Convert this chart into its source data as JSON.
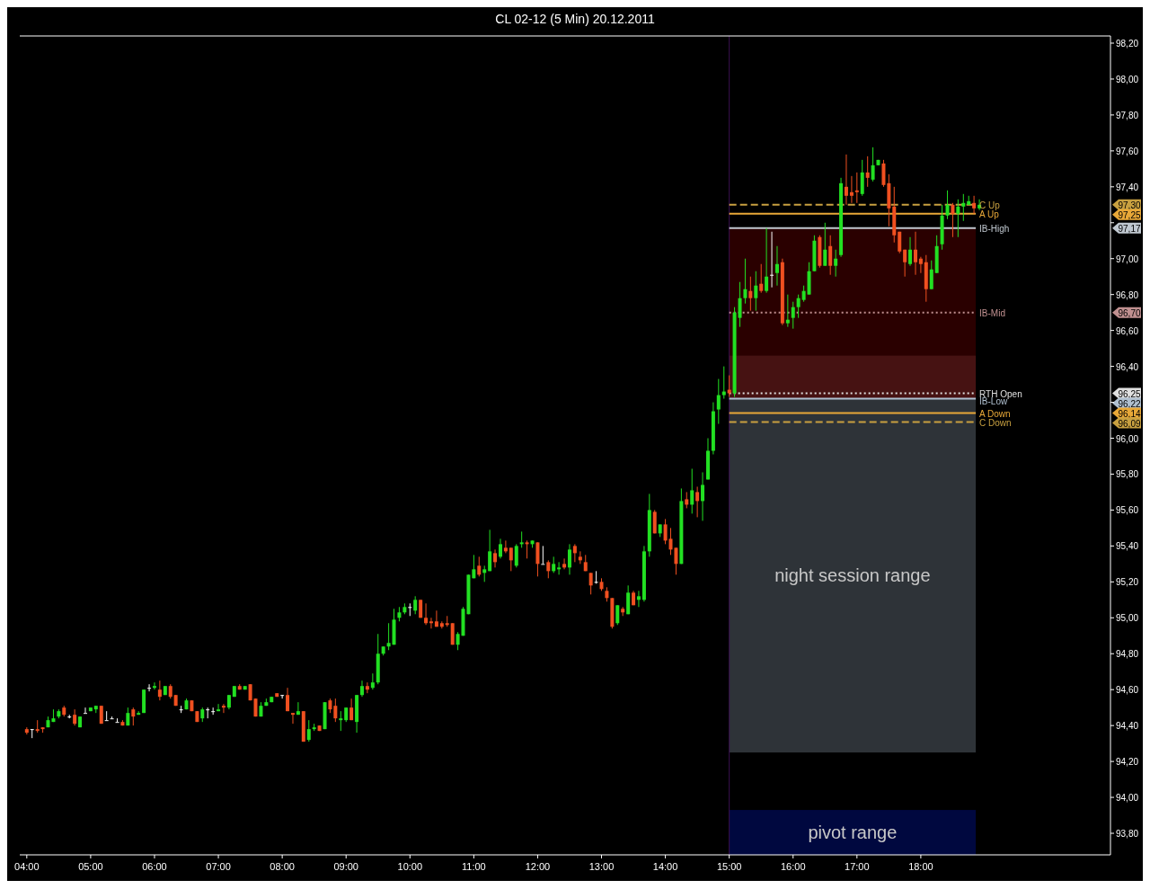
{
  "chart_data": {
    "type": "candlestick",
    "title": "CL 02-12 (5 Min)  20.12.2011",
    "x": [
      4,
      4.083,
      4.167,
      4.25,
      4.333,
      4.417,
      4.5,
      4.583,
      4.667,
      4.75,
      4.833,
      4.917,
      5,
      5.083,
      5.167,
      5.25,
      5.333,
      5.417,
      5.5,
      5.583,
      5.667,
      5.75,
      5.833,
      5.917,
      6,
      6.083,
      6.167,
      6.25,
      6.333,
      6.417,
      6.5,
      6.583,
      6.667,
      6.75,
      6.833,
      6.917,
      7,
      7.083,
      7.167,
      7.25,
      7.333,
      7.417,
      7.5,
      7.583,
      7.667,
      7.75,
      7.833,
      7.917,
      8,
      8.083,
      8.167,
      8.25,
      8.333,
      8.417,
      8.5,
      8.583,
      8.667,
      8.75,
      8.833,
      8.917,
      9,
      9.083,
      9.167,
      9.25,
      9.333,
      9.417,
      9.5,
      9.583,
      9.667,
      9.75,
      9.833,
      9.917,
      10,
      10.083,
      10.167,
      10.25,
      10.333,
      10.417,
      10.5,
      10.583,
      10.667,
      10.75,
      10.833,
      10.917,
      11,
      11.083,
      11.167,
      11.25,
      11.333,
      11.417,
      11.5,
      11.583,
      11.667,
      11.75,
      11.833,
      11.917,
      12,
      12.083,
      12.167,
      12.25,
      12.333,
      12.417,
      12.5,
      12.583,
      12.667,
      12.75,
      12.833,
      12.917,
      13,
      13.083,
      13.167,
      13.25,
      13.333,
      13.417,
      13.5,
      13.583,
      13.667,
      13.75,
      13.833,
      13.917,
      14,
      14.083,
      14.167,
      14.25,
      14.333,
      14.417,
      14.5,
      14.583,
      14.667,
      14.75,
      14.833,
      14.917,
      15,
      15.083,
      15.167,
      15.25,
      15.333,
      15.417,
      15.5,
      15.583,
      15.667,
      15.75,
      15.833,
      15.917,
      16,
      16.083,
      16.167,
      16.25,
      16.333,
      16.417,
      16.5,
      16.583,
      16.667,
      16.75,
      16.833,
      16.917,
      17,
      17.083,
      17.167,
      17.25,
      17.333,
      17.417,
      17.5,
      17.583,
      17.667,
      17.75,
      17.833,
      17.917,
      18,
      18.083,
      18.167,
      18.25,
      18.333,
      18.417,
      18.5,
      18.583,
      18.667,
      18.75,
      18.833,
      18.917
    ],
    "ohlc": [
      [
        94.38,
        94.39,
        94.35,
        94.36
      ],
      [
        94.38,
        94.38,
        94.33,
        94.38
      ],
      [
        94.38,
        94.43,
        94.36,
        94.37
      ],
      [
        94.39,
        94.39,
        94.36,
        94.38
      ],
      [
        94.39,
        94.45,
        94.39,
        94.43
      ],
      [
        94.42,
        94.49,
        94.42,
        94.44
      ],
      [
        94.45,
        94.49,
        94.44,
        94.48
      ],
      [
        94.5,
        94.51,
        94.45,
        94.46
      ],
      [
        94.45,
        94.46,
        94.44,
        94.45
      ],
      [
        94.46,
        94.49,
        94.4,
        94.41
      ],
      [
        94.39,
        94.45,
        94.39,
        94.45
      ],
      [
        94.47,
        94.5,
        94.47,
        94.47
      ],
      [
        94.48,
        94.5,
        94.48,
        94.5
      ],
      [
        94.49,
        94.51,
        94.47,
        94.51
      ],
      [
        94.51,
        94.51,
        94.41,
        94.41
      ],
      [
        94.43,
        94.48,
        94.43,
        94.43
      ],
      [
        94.44,
        94.45,
        94.44,
        94.44
      ],
      [
        94.42,
        94.44,
        94.42,
        94.42
      ],
      [
        94.42,
        94.43,
        94.4,
        94.4
      ],
      [
        94.4,
        94.5,
        94.4,
        94.47
      ],
      [
        94.49,
        94.5,
        94.4,
        94.45
      ],
      [
        94.46,
        94.48,
        94.46,
        94.47
      ],
      [
        94.47,
        94.6,
        94.47,
        94.6
      ],
      [
        94.61,
        94.63,
        94.59,
        94.61
      ],
      [
        94.61,
        94.64,
        94.6,
        94.62
      ],
      [
        94.6,
        94.65,
        94.54,
        94.56
      ],
      [
        94.57,
        94.62,
        94.57,
        94.62
      ],
      [
        94.62,
        94.63,
        94.55,
        94.56
      ],
      [
        94.57,
        94.57,
        94.51,
        94.51
      ],
      [
        94.49,
        94.51,
        94.47,
        94.49
      ],
      [
        94.49,
        94.55,
        94.49,
        94.54
      ],
      [
        94.54,
        94.54,
        94.48,
        94.48
      ],
      [
        94.48,
        94.48,
        94.42,
        94.42
      ],
      [
        94.44,
        94.5,
        94.42,
        94.49
      ],
      [
        94.49,
        94.5,
        94.44,
        94.49
      ],
      [
        94.48,
        94.5,
        94.46,
        94.48
      ],
      [
        94.48,
        94.52,
        94.48,
        94.49
      ],
      [
        94.51,
        94.52,
        94.47,
        94.5
      ],
      [
        94.5,
        94.57,
        94.49,
        94.57
      ],
      [
        94.56,
        94.62,
        94.56,
        94.62
      ],
      [
        94.62,
        94.63,
        94.6,
        94.6
      ],
      [
        94.6,
        94.62,
        94.6,
        94.62
      ],
      [
        94.63,
        94.63,
        94.54,
        94.54
      ],
      [
        94.55,
        94.55,
        94.45,
        94.45
      ],
      [
        94.45,
        94.53,
        94.45,
        94.51
      ],
      [
        94.51,
        94.55,
        94.51,
        94.53
      ],
      [
        94.53,
        94.56,
        94.53,
        94.56
      ],
      [
        94.58,
        94.58,
        94.56,
        94.56
      ],
      [
        94.57,
        94.57,
        94.55,
        94.57
      ],
      [
        94.57,
        94.61,
        94.48,
        94.48
      ],
      [
        94.47,
        94.47,
        94.41,
        94.46
      ],
      [
        94.46,
        94.53,
        94.46,
        94.48
      ],
      [
        94.48,
        94.48,
        94.31,
        94.31
      ],
      [
        94.32,
        94.43,
        94.31,
        94.38
      ],
      [
        94.38,
        94.41,
        94.37,
        94.39
      ],
      [
        94.4,
        94.4,
        94.37,
        94.37
      ],
      [
        94.38,
        94.53,
        94.38,
        94.53
      ],
      [
        94.54,
        94.55,
        94.47,
        94.49
      ],
      [
        94.51,
        94.55,
        94.42,
        94.44
      ],
      [
        94.43,
        94.48,
        94.37,
        94.44
      ],
      [
        94.43,
        94.5,
        94.42,
        94.5
      ],
      [
        94.5,
        94.55,
        94.43,
        94.43
      ],
      [
        94.42,
        94.57,
        94.36,
        94.57
      ],
      [
        94.57,
        94.65,
        94.56,
        94.62
      ],
      [
        94.62,
        94.64,
        94.58,
        94.6
      ],
      [
        94.61,
        94.69,
        94.6,
        94.64
      ],
      [
        94.64,
        94.91,
        94.63,
        94.8
      ],
      [
        94.8,
        94.84,
        94.79,
        94.84
      ],
      [
        94.84,
        94.97,
        94.82,
        94.86
      ],
      [
        94.85,
        95.05,
        94.85,
        94.99
      ],
      [
        95,
        95.06,
        94.98,
        95.03
      ],
      [
        95.03,
        95.08,
        95.02,
        95.06
      ],
      [
        95.06,
        95.08,
        95.01,
        95.06
      ],
      [
        95.04,
        95.12,
        95.02,
        95.1
      ],
      [
        95.1,
        95.1,
        95,
        95
      ],
      [
        95,
        95.08,
        94.96,
        94.97
      ],
      [
        94.98,
        95,
        94.94,
        94.97
      ],
      [
        94.98,
        95.04,
        94.95,
        94.95
      ],
      [
        94.97,
        94.98,
        94.94,
        94.95
      ],
      [
        94.97,
        95.01,
        94.95,
        94.96
      ],
      [
        94.97,
        94.97,
        94.85,
        94.85
      ],
      [
        94.85,
        94.92,
        94.82,
        94.91
      ],
      [
        94.9,
        95.06,
        94.9,
        95.05
      ],
      [
        95.02,
        95.24,
        95.02,
        95.24
      ],
      [
        95.22,
        95.35,
        95.22,
        95.27
      ],
      [
        95.29,
        95.34,
        95.23,
        95.24
      ],
      [
        95.25,
        95.29,
        95.2,
        95.27
      ],
      [
        95.26,
        95.49,
        95.26,
        95.37
      ],
      [
        95.36,
        95.38,
        95.28,
        95.31
      ],
      [
        95.34,
        95.44,
        95.33,
        95.41
      ],
      [
        95.39,
        95.43,
        95.36,
        95.37
      ],
      [
        95.39,
        95.39,
        95.26,
        95.32
      ],
      [
        95.29,
        95.41,
        95.28,
        95.4
      ],
      [
        95.41,
        95.48,
        95.39,
        95.42
      ],
      [
        95.42,
        95.43,
        95.33,
        95.41
      ],
      [
        95.41,
        95.43,
        95.39,
        95.43
      ],
      [
        95.42,
        95.42,
        95.23,
        95.3
      ],
      [
        95.3,
        95.4,
        95.3,
        95.3
      ],
      [
        95.31,
        95.32,
        95.22,
        95.26
      ],
      [
        95.26,
        95.34,
        95.25,
        95.3
      ],
      [
        95.27,
        95.31,
        95.24,
        95.28
      ],
      [
        95.3,
        95.33,
        95.27,
        95.28
      ],
      [
        95.28,
        95.41,
        95.24,
        95.38
      ],
      [
        95.4,
        95.41,
        95.31,
        95.36
      ],
      [
        95.34,
        95.37,
        95.3,
        95.32
      ],
      [
        95.31,
        95.35,
        95.26,
        95.26
      ],
      [
        95.25,
        95.25,
        95.13,
        95.18
      ],
      [
        95.2,
        95.26,
        95.19,
        95.2
      ],
      [
        95.2,
        95.22,
        95.15,
        95.16
      ],
      [
        95.15,
        95.17,
        95.09,
        95.11
      ],
      [
        95.11,
        95.11,
        94.94,
        94.95
      ],
      [
        94.97,
        95.07,
        94.96,
        95.07
      ],
      [
        95.05,
        95.06,
        95.01,
        95.03
      ],
      [
        95.02,
        95.18,
        95.02,
        95.14
      ],
      [
        95.14,
        95.15,
        95.07,
        95.07
      ],
      [
        95.1,
        95.15,
        95.06,
        95.12
      ],
      [
        95.1,
        95.4,
        95.09,
        95.37
      ],
      [
        95.37,
        95.69,
        95.34,
        95.6
      ],
      [
        95.59,
        95.6,
        95.47,
        95.47
      ],
      [
        95.47,
        95.52,
        95.45,
        95.52
      ],
      [
        95.52,
        95.55,
        95.41,
        95.43
      ],
      [
        95.44,
        95.5,
        95.35,
        95.38
      ],
      [
        95.39,
        95.39,
        95.24,
        95.3
      ],
      [
        95.3,
        95.72,
        95.3,
        95.65
      ],
      [
        95.66,
        95.7,
        95.61,
        95.63
      ],
      [
        95.63,
        95.83,
        95.58,
        95.71
      ],
      [
        95.7,
        95.73,
        95.56,
        95.65
      ],
      [
        95.65,
        95.81,
        95.54,
        95.74
      ],
      [
        95.77,
        96,
        95.77,
        95.93
      ],
      [
        95.93,
        96.2,
        95.91,
        96.15
      ],
      [
        96.16,
        96.33,
        96.08,
        96.24
      ],
      [
        96.24,
        96.4,
        96.22,
        96.26
      ],
      [
        96.27,
        96.35,
        96.23,
        96.25
      ],
      [
        96.25,
        96.73,
        96.23,
        96.7
      ],
      [
        96.67,
        96.87,
        96.62,
        96.78
      ],
      [
        96.78,
        97,
        96.75,
        96.83
      ],
      [
        96.82,
        96.9,
        96.71,
        96.78
      ],
      [
        96.78,
        96.93,
        96.71,
        96.85
      ],
      [
        96.86,
        96.97,
        96.81,
        96.82
      ],
      [
        96.82,
        97.17,
        96.81,
        96.9
      ],
      [
        96.91,
        97.15,
        96.84,
        96.91
      ],
      [
        96.92,
        97.07,
        96.85,
        96.97
      ],
      [
        96.98,
        97,
        96.63,
        96.64
      ],
      [
        96.64,
        96.8,
        96.62,
        96.66
      ],
      [
        96.67,
        96.76,
        96.61,
        96.73
      ],
      [
        96.73,
        96.8,
        96.67,
        96.78
      ],
      [
        96.77,
        96.85,
        96.76,
        96.82
      ],
      [
        96.8,
        96.98,
        96.8,
        96.93
      ],
      [
        96.93,
        97.13,
        96.93,
        97.1
      ],
      [
        97.12,
        97.13,
        96.95,
        96.96
      ],
      [
        96.96,
        97.2,
        96.96,
        97.05
      ],
      [
        97.07,
        97.13,
        96.91,
        96.96
      ],
      [
        96.96,
        97.05,
        96.9,
        97
      ],
      [
        97.02,
        97.45,
        97.01,
        97.42
      ],
      [
        97.4,
        97.58,
        97.3,
        97.35
      ],
      [
        97.37,
        97.46,
        97.31,
        97.35
      ],
      [
        97.38,
        97.48,
        97.31,
        97.37
      ],
      [
        97.36,
        97.55,
        97.35,
        97.48
      ],
      [
        97.48,
        97.57,
        97.4,
        97.45
      ],
      [
        97.44,
        97.62,
        97.43,
        97.52
      ],
      [
        97.52,
        97.55,
        97.52,
        97.55
      ],
      [
        97.53,
        97.55,
        97.4,
        97.41
      ],
      [
        97.42,
        97.47,
        97.18,
        97.28
      ],
      [
        97.29,
        97.4,
        97.09,
        97.13
      ],
      [
        97.15,
        97.15,
        97.03,
        97.04
      ],
      [
        97.05,
        97.05,
        96.9,
        96.98
      ],
      [
        96.97,
        97.12,
        96.96,
        97.05
      ],
      [
        97.05,
        97.15,
        96.91,
        96.98
      ],
      [
        97,
        97.01,
        96.92,
        96.97
      ],
      [
        96.98,
        97.02,
        96.76,
        96.83
      ],
      [
        96.83,
        96.99,
        96.83,
        96.94
      ],
      [
        96.92,
        97.13,
        96.92,
        97.07
      ],
      [
        97.08,
        97.3,
        97.05,
        97.24
      ],
      [
        97.24,
        97.38,
        97.22,
        97.3
      ],
      [
        97.3,
        97.31,
        97.12,
        97.25
      ],
      [
        97.25,
        97.33,
        97.12,
        97.29
      ],
      [
        97.29,
        97.36,
        97.21,
        97.31
      ],
      [
        97.3,
        97.35,
        97.3,
        97.32
      ],
      [
        97.31,
        97.35,
        97.25,
        97.28
      ],
      [
        97.28,
        97.33,
        97.27,
        97.3
      ]
    ],
    "xlim": [
      3.89,
      20.97
    ],
    "annotations": [
      "97,30",
      "97,25",
      "97,17",
      "96,70",
      "96,25",
      "96,22",
      "96,14",
      "96,09"
    ],
    "xticks": [
      {
        "value": 4,
        "label": "04:00"
      },
      {
        "value": 5,
        "label": "05:00"
      },
      {
        "value": 6,
        "label": "06:00"
      },
      {
        "value": 7,
        "label": "07:00"
      },
      {
        "value": 8,
        "label": "08:00"
      },
      {
        "value": 9,
        "label": "09:00"
      },
      {
        "value": 10,
        "label": "10:00"
      },
      {
        "value": 11,
        "label": "11:00"
      },
      {
        "value": 12,
        "label": "12:00"
      },
      {
        "value": 13,
        "label": "13:00"
      },
      {
        "value": 14,
        "label": "14:00"
      },
      {
        "value": 15,
        "label": "15:00"
      },
      {
        "value": 16,
        "label": "16:00"
      },
      {
        "value": 17,
        "label": "17:00"
      },
      {
        "value": 18,
        "label": "18:00"
      }
    ],
    "ylim": [
      93.68,
      98.24
    ],
    "yticks": [
      {
        "value": 93.8,
        "label": "93,80"
      },
      {
        "value": 94,
        "label": "94,00"
      },
      {
        "value": 94.2,
        "label": "94,20"
      },
      {
        "value": 94.4,
        "label": "94,40"
      },
      {
        "value": 94.6,
        "label": "94,60"
      },
      {
        "value": 94.8,
        "label": "94,80"
      },
      {
        "value": 95,
        "label": "95,00"
      },
      {
        "value": 95.2,
        "label": "95,20"
      },
      {
        "value": 95.4,
        "label": "95,40"
      },
      {
        "value": 95.6,
        "label": "95,60"
      },
      {
        "value": 95.8,
        "label": "95,80"
      },
      {
        "value": 96,
        "label": "96,00"
      },
      {
        "value": 96.2,
        "label": null
      },
      {
        "value": 96.4,
        "label": "96,40"
      },
      {
        "value": 96.6,
        "label": "96,60"
      },
      {
        "value": 96.8,
        "label": "96,80"
      },
      {
        "value": 97,
        "label": "97,00"
      },
      {
        "value": 97.2,
        "label": null
      },
      {
        "value": 97.4,
        "label": "97,40"
      },
      {
        "value": 97.6,
        "label": "97,60"
      },
      {
        "value": 97.8,
        "label": "97,80"
      },
      {
        "value": 98,
        "label": "98,00"
      },
      {
        "value": 98.2,
        "label": "98,20"
      }
    ],
    "bands": [
      {
        "axis": "y",
        "from": 96.22,
        "to": 97.17,
        "color": "#2a0000"
      },
      {
        "axis": "y",
        "from": 96.22,
        "to": 96.46,
        "color": "#461212"
      },
      {
        "axis": "y",
        "from": 94.25,
        "to": 96.22,
        "color": "#2e3338",
        "label": "night session range"
      },
      {
        "axis": "y",
        "from": 93.68,
        "to": 93.93,
        "color": "#00083f",
        "label": "pivot range"
      }
    ],
    "ref_lines": [
      {
        "axis": "x",
        "value": 15,
        "color": "#3a1050"
      },
      {
        "axis": "y",
        "value": 97.3,
        "label": "C Up",
        "color": "#c8a040",
        "line_style": "dashed"
      },
      {
        "axis": "y",
        "value": 97.25,
        "label": "A Up",
        "color": "#e8a838"
      },
      {
        "axis": "y",
        "value": 97.17,
        "label": "IB-High",
        "color": "#c0c8d0"
      },
      {
        "axis": "y",
        "value": 96.7,
        "label": "IB-Mid",
        "color": "#c09090",
        "line_style": "dotted"
      },
      {
        "axis": "y",
        "value": 96.25,
        "label": "RTH Open",
        "color": "#e0e0e0",
        "line_style": "dotted"
      },
      {
        "axis": "y",
        "value": 96.22,
        "label": "IB-Low",
        "color": "#b0c0d0"
      },
      {
        "axis": "y",
        "value": 96.14,
        "label": "A Down",
        "color": "#e8a838"
      },
      {
        "axis": "y",
        "value": 96.09,
        "label": "C Down",
        "color": "#c8a040",
        "line_style": "dashed"
      }
    ]
  }
}
